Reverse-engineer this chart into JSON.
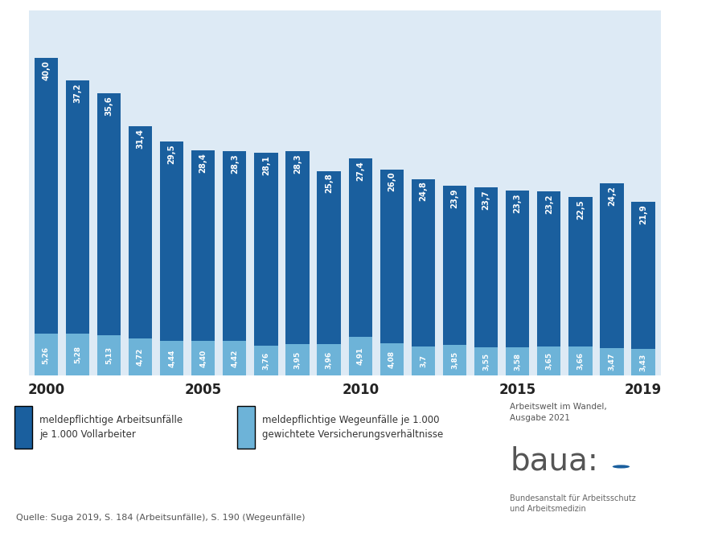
{
  "years": [
    2000,
    2001,
    2002,
    2003,
    2004,
    2005,
    2006,
    2007,
    2008,
    2009,
    2010,
    2011,
    2012,
    2013,
    2014,
    2015,
    2016,
    2017,
    2018,
    2019
  ],
  "arbeitsunfaelle": [
    40.0,
    37.2,
    35.6,
    31.4,
    29.5,
    28.4,
    28.3,
    28.1,
    28.3,
    25.8,
    27.4,
    26.0,
    24.8,
    23.9,
    23.7,
    23.3,
    23.2,
    22.5,
    24.2,
    21.9
  ],
  "wegeunfaelle": [
    5.26,
    5.28,
    5.13,
    4.72,
    4.44,
    4.4,
    4.42,
    3.76,
    3.95,
    3.96,
    4.91,
    4.08,
    3.7,
    3.85,
    3.55,
    3.58,
    3.65,
    3.66,
    3.47,
    3.43
  ],
  "wegeunfaelle_labels": [
    "5,26",
    "5,28",
    "5,13",
    "4,72",
    "4,44",
    "4,40",
    "4,42",
    "3,76",
    "3,95",
    "3,96",
    "4,91",
    "4,08",
    "3,7",
    "3,85",
    "3,55",
    "3,58",
    "3,65",
    "3,66",
    "3,47",
    "3,43"
  ],
  "arbeitsunfaelle_labels": [
    "40,0",
    "37,2",
    "35,6",
    "31,4",
    "29,5",
    "28,4",
    "28,3",
    "28,1",
    "28,3",
    "25,8",
    "27,4",
    "26,0",
    "24,8",
    "23,9",
    "23,7",
    "23,3",
    "23,2",
    "22,5",
    "24,2",
    "21,9"
  ],
  "bar_color_dark": "#1a5f9e",
  "bar_color_light": "#6db3d8",
  "background_color": "#ddeaf5",
  "chart_bg_color": "#ddeaf5",
  "legend_bg_color": "#ffffff",
  "tick_label_years": [
    2000,
    2005,
    2010,
    2015,
    2019
  ],
  "legend_label_dark_line1": "meldepflichtige Arbeitsunfälle",
  "legend_label_dark_line2": "je 1.000 Vollarbeiter",
  "legend_label_light_line1": "meldepflichtige Wegeunfälle je 1.000",
  "legend_label_light_line2": "gewichtete Versicherungsverhältnisse",
  "source_text": "Quelle: Suga 2019, S. 184 (Arbeitsunfälle), S. 190 (Wegeunfälle)",
  "footnote_line1": "Arbeitswelt im Wandel,",
  "footnote_line2": "Ausgabe 2021",
  "baua_line1": "Bundesanstalt für Arbeitsschutz",
  "baua_line2": "und Arbeitsmedizin"
}
